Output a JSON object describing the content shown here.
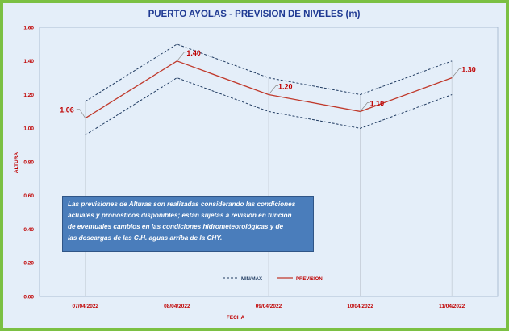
{
  "chart_data": {
    "type": "line",
    "title": "PUERTO AYOLAS - PREVISION DE NIVELES (m)",
    "xlabel": "FECHA",
    "ylabel": "ALTURA",
    "ylim": [
      0,
      1.6
    ],
    "yticks": [
      "0.00",
      "0.20",
      "0.40",
      "0.60",
      "0.80",
      "1.00",
      "1.20",
      "1.40",
      "1.60"
    ],
    "categories": [
      "07/04/2022",
      "08/04/2022",
      "09/04/2022",
      "10/04/2022",
      "11/04/2022"
    ],
    "series": [
      {
        "name": "PREVISION",
        "values": [
          1.06,
          1.4,
          1.2,
          1.1,
          1.3
        ],
        "color": "#c0392b",
        "labels": [
          "1.06",
          "1.40",
          "1.20",
          "1.10",
          "1.30"
        ]
      },
      {
        "name": "MAX",
        "values": [
          1.16,
          1.5,
          1.3,
          1.2,
          1.4
        ],
        "color": "#1f3a60"
      },
      {
        "name": "MIN",
        "values": [
          0.96,
          1.3,
          1.1,
          1.0,
          1.2
        ],
        "color": "#1f3a60"
      }
    ],
    "legend": {
      "placement": "bottom-right",
      "entries": [
        "MIN/MAX",
        "PREVISION"
      ]
    },
    "grid": false,
    "drop_lines": true
  },
  "colors": {
    "title": "#1f3a93",
    "axis_text": "#c00000",
    "data_label": "#c00000",
    "border": "#7bc043",
    "plot_bg": "#e4eef9"
  },
  "note": {
    "lines": [
      "Las previsiones de Alturas son realizadas considerando las condiciones",
      "actuales y pronósticos disponibles; están sujetas a revisión en función",
      "de eventuales cambios en las condiciones hidrometeorológicas y de",
      "las descargas de las C.H. aguas arriba de la CHY."
    ]
  }
}
